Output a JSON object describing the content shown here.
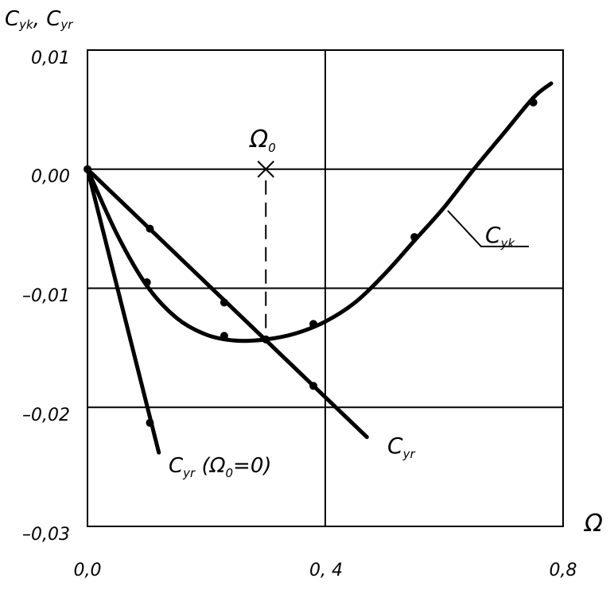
{
  "chart_data": {
    "type": "line",
    "xlabel": "Ω",
    "ylabel": {
      "main1": "C",
      "sub1": "yk",
      "sep": ", ",
      "main2": "C",
      "sub2": "yr"
    },
    "xlim": [
      0.0,
      0.8
    ],
    "ylim": [
      -0.03,
      0.01
    ],
    "x_ticks": [
      0.0,
      0.4,
      0.8
    ],
    "x_tick_labels": [
      "0,0",
      "0, 4",
      "0,8"
    ],
    "y_ticks": [
      0.01,
      0.0,
      -0.01,
      -0.02,
      -0.03
    ],
    "y_tick_labels": [
      "0,01",
      "0,00",
      "–0,01",
      "–0,02",
      "–0,03"
    ],
    "grid": true,
    "series": [
      {
        "name_main": "C",
        "name_sub": "yk",
        "x": [
          0.0,
          0.05,
          0.1,
          0.15,
          0.2,
          0.25,
          0.3,
          0.35,
          0.4,
          0.45,
          0.5,
          0.55,
          0.6,
          0.65,
          0.7,
          0.75,
          0.78
        ],
        "y": [
          0.0,
          -0.0055,
          -0.0098,
          -0.0125,
          -0.0139,
          -0.0144,
          -0.0143,
          -0.0138,
          -0.0128,
          -0.0112,
          -0.0088,
          -0.006,
          -0.0032,
          0.0,
          0.003,
          0.006,
          0.0072
        ],
        "markers_x": [
          0.1,
          0.23,
          0.3,
          0.38,
          0.55,
          0.75
        ],
        "markers_y": [
          -0.0095,
          -0.014,
          -0.0143,
          -0.013,
          -0.0057,
          0.0056
        ]
      },
      {
        "name_main": "C",
        "name_sub": "yr",
        "x": [
          0.0,
          0.47
        ],
        "y": [
          0.0,
          -0.0225
        ],
        "markers_x": [
          0.105,
          0.23,
          0.38
        ],
        "markers_y": [
          -0.005,
          -0.0112,
          -0.0182
        ]
      },
      {
        "name_main": "C",
        "name_sub": "yr",
        "name_suffix": " (Ω",
        "name_suffix_sub": "0",
        "name_suffix_end": "=0)",
        "x": [
          0.0,
          0.12
        ],
        "y": [
          0.0,
          -0.0238
        ],
        "markers_x": [
          0.105
        ],
        "markers_y": [
          -0.0213
        ]
      }
    ],
    "annotations": [
      {
        "main": "Ω",
        "sub": "0",
        "x": 0.3,
        "y": 0.0
      }
    ]
  }
}
